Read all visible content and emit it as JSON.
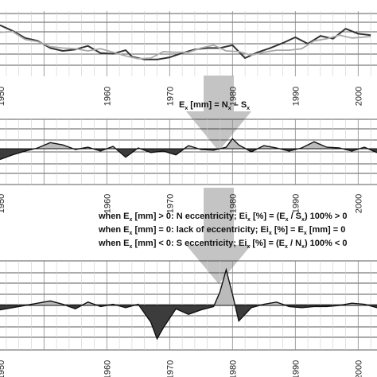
{
  "chart_data": [
    {
      "type": "line",
      "series": [
        {
          "color": "#333333",
          "values": [
            {
              "x": 1943,
              "y": 2.6
            },
            {
              "x": 1945,
              "y": 1.8
            },
            {
              "x": 1947,
              "y": 0.8
            },
            {
              "x": 1949,
              "y": 0.4
            },
            {
              "x": 1951,
              "y": -0.6
            },
            {
              "x": 1953,
              "y": -1.0
            },
            {
              "x": 1955,
              "y": -0.8
            },
            {
              "x": 1957,
              "y": -0.3
            },
            {
              "x": 1959,
              "y": -1.3
            },
            {
              "x": 1961,
              "y": -1.4
            },
            {
              "x": 1963,
              "y": -0.9
            },
            {
              "x": 1964,
              "y": -1.8
            },
            {
              "x": 1966,
              "y": -2.2
            },
            {
              "x": 1968,
              "y": -2.2
            },
            {
              "x": 1970,
              "y": -1.9
            },
            {
              "x": 1972,
              "y": -1.3
            },
            {
              "x": 1974,
              "y": -0.8
            },
            {
              "x": 1976,
              "y": -0.6
            },
            {
              "x": 1978,
              "y": -0.6
            },
            {
              "x": 1980,
              "y": -0.2
            },
            {
              "x": 1982,
              "y": -2.0
            },
            {
              "x": 1984,
              "y": -1.2
            },
            {
              "x": 1986,
              "y": -0.6
            },
            {
              "x": 1988,
              "y": 0.1
            },
            {
              "x": 1990,
              "y": 0.9
            },
            {
              "x": 1992,
              "y": 0.0
            },
            {
              "x": 1994,
              "y": 1.1
            },
            {
              "x": 1996,
              "y": 0.7
            },
            {
              "x": 1998,
              "y": 2.1
            },
            {
              "x": 2000,
              "y": 1.4
            },
            {
              "x": 2002,
              "y": 1.2
            }
          ]
        },
        {
          "color": "#aaaaaa",
          "values": [
            {
              "x": 1943,
              "y": 1.6
            },
            {
              "x": 1945,
              "y": 1.7
            },
            {
              "x": 1947,
              "y": 0.6
            },
            {
              "x": 1949,
              "y": 0.3
            },
            {
              "x": 1951,
              "y": -0.4
            },
            {
              "x": 1953,
              "y": -0.6
            },
            {
              "x": 1955,
              "y": -0.7
            },
            {
              "x": 1957,
              "y": -1.0
            },
            {
              "x": 1959,
              "y": -0.7
            },
            {
              "x": 1961,
              "y": -1.2
            },
            {
              "x": 1963,
              "y": -1.7
            },
            {
              "x": 1965,
              "y": -2.1
            },
            {
              "x": 1967,
              "y": -2.0
            },
            {
              "x": 1969,
              "y": -1.1
            },
            {
              "x": 1971,
              "y": -1.2
            },
            {
              "x": 1973,
              "y": -1.2
            },
            {
              "x": 1975,
              "y": -0.6
            },
            {
              "x": 1977,
              "y": -0.2
            },
            {
              "x": 1979,
              "y": -1.0
            },
            {
              "x": 1981,
              "y": -1.1
            },
            {
              "x": 1983,
              "y": -1.6
            },
            {
              "x": 1985,
              "y": -1.2
            },
            {
              "x": 1987,
              "y": -0.9
            },
            {
              "x": 1989,
              "y": -0.9
            },
            {
              "x": 1991,
              "y": -0.7
            },
            {
              "x": 1993,
              "y": 0.4
            },
            {
              "x": 1995,
              "y": 0.7
            },
            {
              "x": 1997,
              "y": 1.2
            },
            {
              "x": 1999,
              "y": 0.8
            },
            {
              "x": 2002,
              "y": 1.0
            }
          ]
        }
      ],
      "xlim": [
        1943,
        2003
      ],
      "ylim": [
        -3,
        3
      ],
      "xticks": [
        "1960",
        "1970",
        "1980",
        "1990",
        "2000"
      ],
      "grid": "horizontal"
    },
    {
      "type": "area",
      "x": [
        1943,
        1945,
        1947,
        1949,
        1951,
        1953,
        1955,
        1957,
        1959,
        1961,
        1963,
        1965,
        1967,
        1969,
        1971,
        1973,
        1975,
        1977,
        1979,
        1980,
        1981,
        1983,
        1985,
        1987,
        1989,
        1991,
        1993,
        1995,
        1997,
        1999,
        2001,
        2003
      ],
      "values": [
        -1.4,
        -0.8,
        -0.3,
        0.1,
        0.8,
        0.5,
        -0.1,
        0.2,
        -0.3,
        0.3,
        -1.1,
        0.1,
        -0.5,
        -0.3,
        -0.8,
        0.4,
        -0.1,
        -0.2,
        0.2,
        1.3,
        0.5,
        -0.4,
        0.4,
        0.1,
        -0.3,
        0.1,
        0.9,
        0.2,
        0.1,
        -0.3,
        0.2,
        -0.5
      ],
      "positive_color": "#bbbbbb",
      "negative_color": "#3c3c3c",
      "xlim": [
        1943,
        2003
      ],
      "ylim": [
        -3,
        3
      ],
      "xticks": [
        "1960",
        "1970",
        "1980",
        "1990",
        "2000"
      ],
      "grid": "horizontal"
    },
    {
      "type": "area",
      "x": [
        1943,
        1945,
        1947,
        1949,
        1951,
        1953,
        1955,
        1957,
        1959,
        1961,
        1963,
        1965,
        1967,
        1968,
        1969,
        1971,
        1973,
        1975,
        1977,
        1978,
        1979,
        1980,
        1981,
        1983,
        1985,
        1987,
        1989,
        1991,
        1993,
        1995,
        1997,
        1999,
        2001,
        2003
      ],
      "values": [
        -0.4,
        -0.2,
        0.0,
        0.2,
        0.4,
        0.1,
        -0.3,
        0.3,
        -0.1,
        0.1,
        -0.2,
        0.1,
        -1.5,
        -3.0,
        -2.0,
        -0.3,
        -0.8,
        -0.4,
        -0.1,
        1.2,
        3.2,
        1.0,
        -1.4,
        -0.2,
        0.1,
        0.3,
        -0.1,
        -0.2,
        -0.1,
        -0.1,
        0.0,
        0.2,
        0.1,
        -0.2
      ],
      "positive_color": "#bbbbbb",
      "negative_color": "#3c3c3c",
      "xlim": [
        1943,
        2003
      ],
      "ylim": [
        -4,
        4
      ],
      "xticks": [
        "1960",
        "1970",
        "1980",
        "1990",
        "2000"
      ],
      "grid": "horizontal"
    }
  ],
  "annotations": {
    "eq1": {
      "E": "E",
      "x1": "x",
      "mm": " [mm] = N",
      "x2": "x",
      "minus": " – S",
      "x3": "x"
    },
    "line1": {
      "a": "when E",
      "xa": "x",
      "b": " [mm] > 0: N eccentricity;   Ei",
      "xb": "x",
      "c": " [%] = (E",
      "xc": "x",
      "d": " / S",
      "xd": "x",
      "e": ") 100% > 0"
    },
    "line2": {
      "a": "when E",
      "xa": "x",
      "b": " [mm] = 0: lack of eccentricity;   Ei",
      "xb": "x",
      "c": " [%] = E",
      "xc": "x",
      "d": " [mm] = 0"
    },
    "line3": {
      "a": "when E",
      "xa": "x",
      "b": " [mm] < 0: S eccentricity;   Ei",
      "xb": "x",
      "c": " [%] = (E",
      "xc": "x",
      "d": " / N",
      "xd": "x",
      "e": ") 100% < 0"
    }
  }
}
